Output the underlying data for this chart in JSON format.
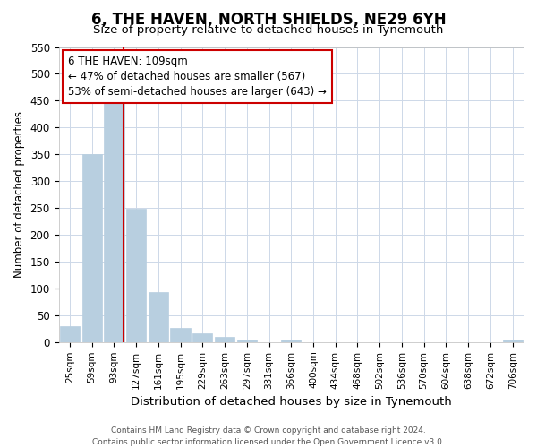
{
  "title": "6, THE HAVEN, NORTH SHIELDS, NE29 6YH",
  "subtitle": "Size of property relative to detached houses in Tynemouth",
  "xlabel": "Distribution of detached houses by size in Tynemouth",
  "ylabel": "Number of detached properties",
  "bar_labels": [
    "25sqm",
    "59sqm",
    "93sqm",
    "127sqm",
    "161sqm",
    "195sqm",
    "229sqm",
    "263sqm",
    "297sqm",
    "331sqm",
    "366sqm",
    "400sqm",
    "434sqm",
    "468sqm",
    "502sqm",
    "536sqm",
    "570sqm",
    "604sqm",
    "638sqm",
    "672sqm",
    "706sqm"
  ],
  "bar_values": [
    30,
    350,
    445,
    248,
    93,
    27,
    16,
    10,
    5,
    0,
    5,
    0,
    0,
    0,
    0,
    0,
    0,
    0,
    0,
    0,
    5
  ],
  "bar_color": "#b8cfe0",
  "bar_edge_color": "#b8cfe0",
  "vline_x_index": 2.425,
  "vline_color": "#cc0000",
  "ann_line1": "6 THE HAVEN: 109sqm",
  "ann_line2": "← 47% of detached houses are smaller (567)",
  "ann_line3": "53% of semi-detached houses are larger (643) →",
  "ylim": [
    0,
    550
  ],
  "yticks": [
    0,
    50,
    100,
    150,
    200,
    250,
    300,
    350,
    400,
    450,
    500,
    550
  ],
  "footer_line1": "Contains HM Land Registry data © Crown copyright and database right 2024.",
  "footer_line2": "Contains public sector information licensed under the Open Government Licence v3.0.",
  "background_color": "#ffffff",
  "grid_color": "#cdd8e8",
  "title_fontsize": 12,
  "subtitle_fontsize": 9.5,
  "xlabel_fontsize": 9.5,
  "ylabel_fontsize": 8.5,
  "tick_fontsize": 7.5,
  "ann_fontsize": 8.5,
  "footer_fontsize": 6.5
}
